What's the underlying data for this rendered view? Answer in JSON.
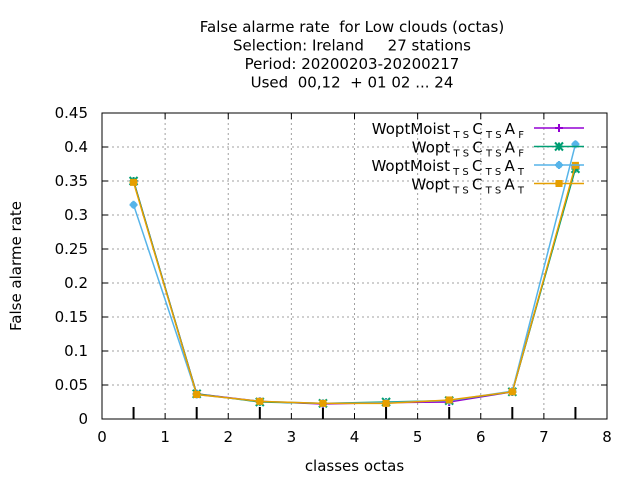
{
  "chart_data": {
    "type": "line",
    "title_lines": [
      "False alarme rate  for Low clouds (octas)",
      "Selection: Ireland     27 stations",
      "Period: 20200203-20200217",
      "Used  00,12  + 01 02 ... 24"
    ],
    "xlabel": "classes octas",
    "ylabel": "False alarme rate",
    "xlim": [
      0,
      8
    ],
    "ylim": [
      0,
      0.45
    ],
    "x_ticks": [
      "0",
      "1",
      "2",
      "3",
      "4",
      "5",
      "6",
      "7",
      "8"
    ],
    "y_ticks": [
      "0",
      "0.05",
      "0.1",
      "0.15",
      "0.2",
      "0.25",
      "0.3",
      "0.35",
      "0.4",
      "0.45"
    ],
    "grid": true,
    "legend_position": "top-right",
    "x": [
      0.5,
      1.5,
      2.5,
      3.5,
      4.5,
      5.5,
      6.5,
      7.5
    ],
    "series": [
      {
        "name_base": "WoptMoist",
        "name_sub1": "T S",
        "name_c": "C",
        "name_sub2": "T S",
        "name_a": "A",
        "name_sub3": "F",
        "color": "#9400d3",
        "marker": "plus",
        "values": [
          0.35,
          0.037,
          0.026,
          0.022,
          0.024,
          0.025,
          0.04,
          0.37
        ]
      },
      {
        "name_base": "Wopt",
        "name_sub1": "T S",
        "name_c": "C",
        "name_sub2": "T S",
        "name_a": "A",
        "name_sub3": "F",
        "color": "#009e73",
        "marker": "cross",
        "values": [
          0.35,
          0.037,
          0.025,
          0.023,
          0.025,
          0.027,
          0.04,
          0.368
        ]
      },
      {
        "name_base": "WoptMoist",
        "name_sub1": "T S",
        "name_c": "C",
        "name_sub2": "T S",
        "name_a": "A",
        "name_sub3": "T",
        "color": "#56b4e9",
        "marker": "star",
        "values": [
          0.315,
          0.036,
          0.026,
          0.023,
          0.024,
          0.027,
          0.041,
          0.404
        ]
      },
      {
        "name_base": "Wopt",
        "name_sub1": "T S",
        "name_c": "C",
        "name_sub2": "T S",
        "name_a": "A",
        "name_sub3": "T",
        "color": "#e69f00",
        "marker": "square",
        "values": [
          0.348,
          0.036,
          0.026,
          0.023,
          0.023,
          0.028,
          0.04,
          0.373
        ]
      }
    ]
  }
}
